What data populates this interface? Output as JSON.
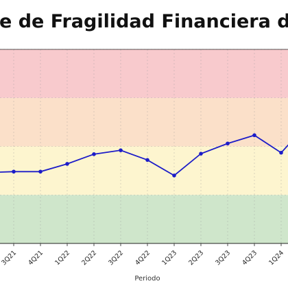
{
  "chart_data": {
    "type": "line",
    "title": "e de Fragilidad Financiera de",
    "xlabel": "Periodo",
    "ylabel": "",
    "categories": [
      "",
      "3Q21",
      "4Q21",
      "1Q22",
      "2Q22",
      "3Q22",
      "4Q22",
      "1Q23",
      "2Q23",
      "3Q23",
      "4Q23",
      "1Q24",
      ""
    ],
    "series": [
      {
        "values": [
          1.46,
          1.48,
          1.48,
          1.64,
          1.84,
          1.92,
          1.72,
          1.4,
          1.85,
          2.06,
          2.23,
          1.87,
          2.47
        ]
      }
    ],
    "ylim": [
      0,
      4
    ],
    "bands": [
      {
        "level": "low",
        "from": 0,
        "to": 1,
        "color": "#cfe6cb"
      },
      {
        "level": "moderate",
        "from": 1,
        "to": 2,
        "color": "#fdf5cf"
      },
      {
        "level": "high",
        "from": 2,
        "to": 3,
        "color": "#fbe0c9"
      },
      {
        "level": "very-high",
        "from": 3,
        "to": 4,
        "color": "#f8cacd"
      }
    ],
    "grid": true,
    "line_color": "#1c1cc8"
  }
}
